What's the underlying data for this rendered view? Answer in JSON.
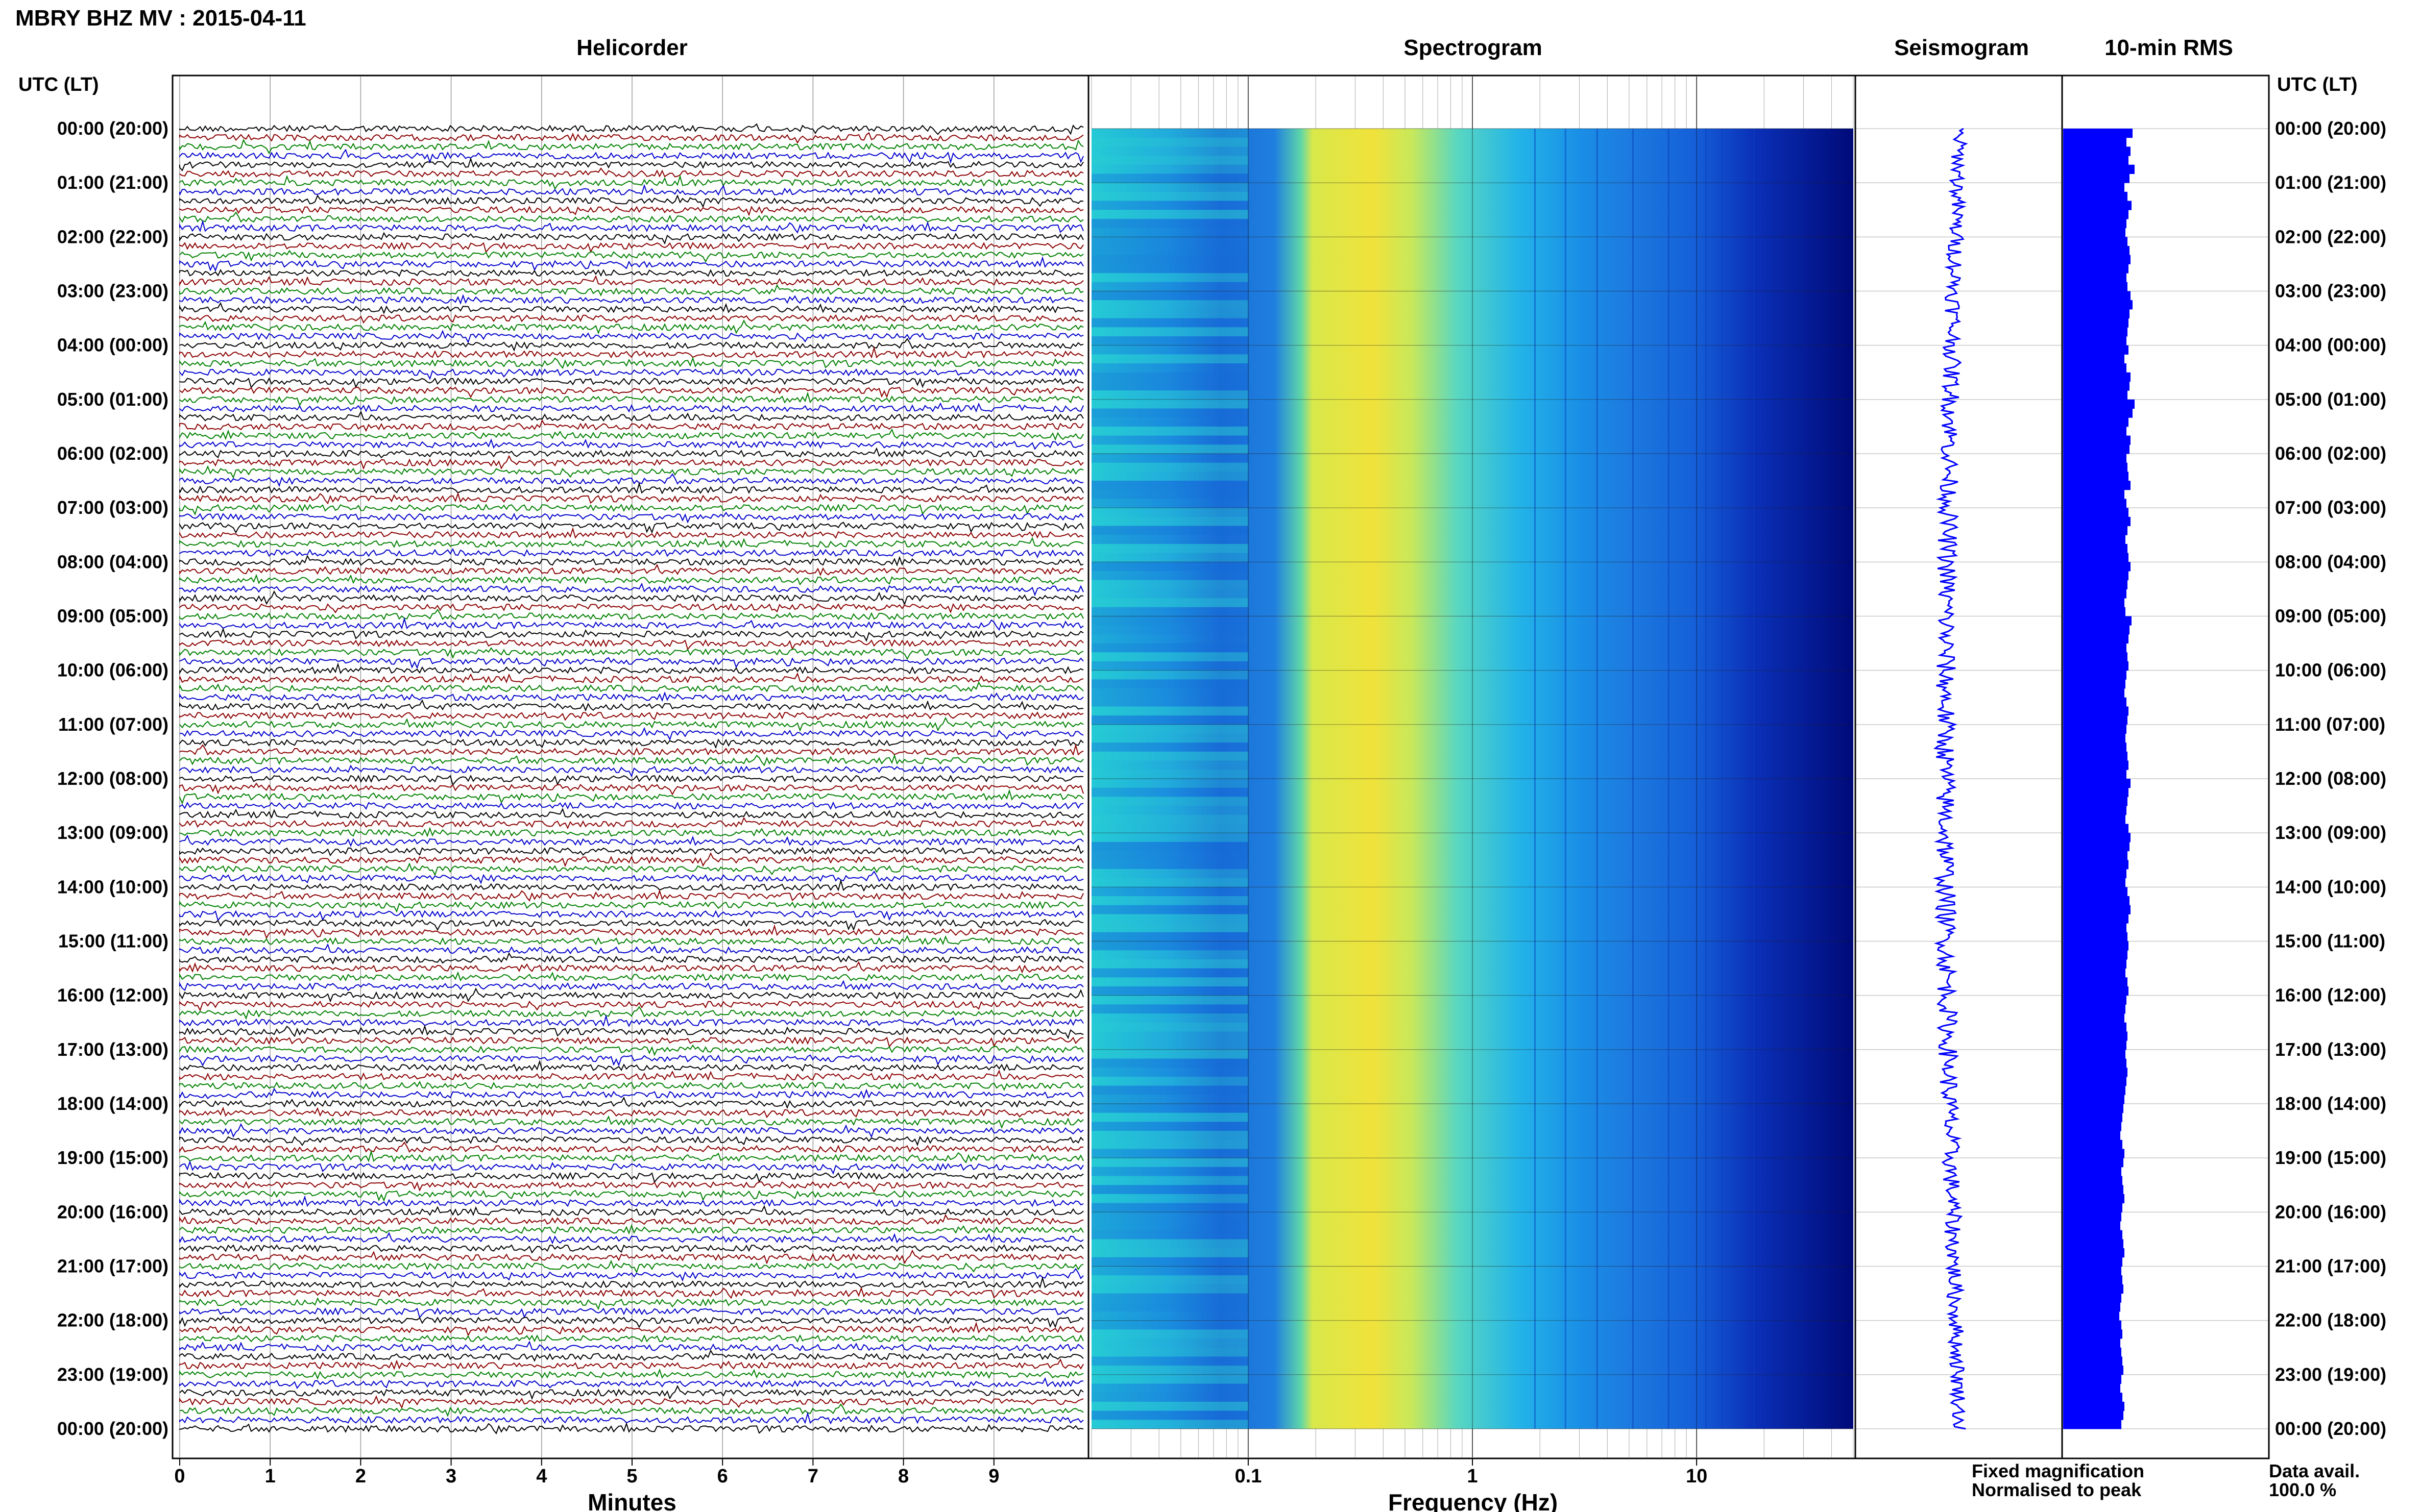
{
  "header": {
    "station_title": "MBRY BHZ MV : 2015-04-11"
  },
  "panels": {
    "helicorder_title": "Helicorder",
    "spectrogram_title": "Spectrogram",
    "seismogram_title": "Seismogram",
    "rms_title": "10-min RMS"
  },
  "axes": {
    "left_header": "UTC (LT)",
    "right_header": "UTC (LT)",
    "minutes_label": "Minutes",
    "frequency_label": "Frequency (Hz)",
    "minutes_ticks": [
      "0",
      "1",
      "2",
      "3",
      "4",
      "5",
      "6",
      "7",
      "8",
      "9"
    ],
    "frequency_ticks": [
      "0.1",
      "1",
      "10"
    ]
  },
  "legend": {
    "fixed": "Fixed magnification",
    "normalised": "Normalised to peak",
    "fixed_color": "#0000ff",
    "normalised_color": "#ff0000"
  },
  "availability": {
    "label": "Data avail.",
    "value": "100.0 %"
  },
  "colors": {
    "trace_cycle": [
      "#000000",
      "#8b0000",
      "#008000",
      "#0000cd"
    ],
    "rms_bar": "#0000ff",
    "seismo_trace": "#0000ff"
  },
  "chart_data": {
    "type": "heatmap",
    "title": "MBRY BHZ MV : 2015-04-11",
    "time_labels": [
      "00:00 (20:00)",
      "01:00 (21:00)",
      "02:00 (22:00)",
      "03:00 (23:00)",
      "04:00 (00:00)",
      "05:00 (01:00)",
      "06:00 (02:00)",
      "07:00 (03:00)",
      "08:00 (04:00)",
      "09:00 (05:00)",
      "10:00 (06:00)",
      "11:00 (07:00)",
      "12:00 (08:00)",
      "13:00 (09:00)",
      "14:00 (10:00)",
      "15:00 (11:00)",
      "16:00 (12:00)",
      "17:00 (13:00)",
      "18:00 (14:00)",
      "19:00 (15:00)",
      "20:00 (16:00)",
      "21:00 (17:00)",
      "22:00 (18:00)",
      "23:00 (19:00)",
      "00:00 (20:00)"
    ],
    "helicorder": {
      "x_range_minutes": [
        0,
        10
      ],
      "traces_per_hour": 6,
      "hours": 24,
      "color_cycle": [
        "black",
        "dark red",
        "green",
        "blue"
      ]
    },
    "spectrogram": {
      "x_scale": "log",
      "x_range_hz": [
        0.02,
        50
      ],
      "peak_band_hz": [
        0.2,
        0.6
      ],
      "colormap": "jet"
    },
    "rms_10min": {
      "values": [
        0.68,
        0.62,
        0.66,
        0.64,
        0.7,
        0.65,
        0.6,
        0.63,
        0.67,
        0.64,
        0.62,
        0.61,
        0.63,
        0.65,
        0.66,
        0.64,
        0.62,
        0.63,
        0.66,
        0.68,
        0.65,
        0.64,
        0.63,
        0.62,
        0.64,
        0.6,
        0.62,
        0.66,
        0.65,
        0.63,
        0.7,
        0.68,
        0.64,
        0.62,
        0.66,
        0.65,
        0.62,
        0.63,
        0.64,
        0.66,
        0.6,
        0.62,
        0.64,
        0.66,
        0.63,
        0.61,
        0.63,
        0.64,
        0.66,
        0.64,
        0.63,
        0.62,
        0.6,
        0.61,
        0.67,
        0.65,
        0.64,
        0.62,
        0.63,
        0.64,
        0.62,
        0.61,
        0.6,
        0.62,
        0.64,
        0.63,
        0.62,
        0.61,
        0.62,
        0.63,
        0.64,
        0.62,
        0.66,
        0.64,
        0.63,
        0.62,
        0.61,
        0.64,
        0.66,
        0.65,
        0.63,
        0.64,
        0.62,
        0.61,
        0.63,
        0.65,
        0.66,
        0.64,
        0.62,
        0.63,
        0.64,
        0.63,
        0.62,
        0.61,
        0.63,
        0.64,
        0.62,
        0.61,
        0.6,
        0.62,
        0.63,
        0.62,
        0.61,
        0.62,
        0.63,
        0.62,
        0.61,
        0.6,
        0.59,
        0.58,
        0.57,
        0.56,
        0.58,
        0.6,
        0.59,
        0.57,
        0.58,
        0.59,
        0.6,
        0.58,
        0.57,
        0.56,
        0.58,
        0.59,
        0.6,
        0.58,
        0.57,
        0.58,
        0.59,
        0.57,
        0.56,
        0.55,
        0.57,
        0.58,
        0.56,
        0.57,
        0.58,
        0.59,
        0.57,
        0.56,
        0.58,
        0.6,
        0.59,
        0.57
      ]
    }
  }
}
